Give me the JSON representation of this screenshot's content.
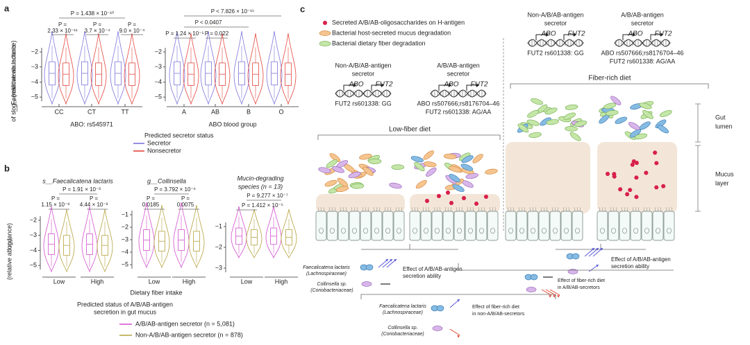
{
  "panel_a": {
    "label": "a",
    "ylabel": [
      "log₁₀ (relative abundance)",
      "of s__Faecalicatena lactaris"
    ],
    "yticks": [
      "−2",
      "−3",
      "−4",
      "−5"
    ],
    "left": {
      "groups": [
        "CC",
        "CT",
        "TT"
      ],
      "xlabel": "ABO: rs545971",
      "p": [
        [
          "P = 1.438 × 10⁻¹⁰"
        ],
        [
          "P =",
          "2.33 × 10⁻¹¹"
        ],
        [
          "P =",
          "3.7 × 10⁻⁴"
        ],
        [
          "P =",
          "9.0 × 10⁻⁴"
        ]
      ]
    },
    "right": {
      "groups": [
        "A",
        "AB",
        "B",
        "O"
      ],
      "xlabel": "ABO blood group",
      "p": [
        [
          "P < 7.826 × 10⁻¹⁵"
        ],
        [
          "P < 0.0407"
        ],
        [
          "P = 1.24 × 10⁻⁵"
        ],
        [
          "P = 0.022"
        ]
      ]
    },
    "legend": {
      "title": "Predicted secretor status",
      "items": [
        {
          "name": "Secretor",
          "color": "#7b73d9"
        },
        {
          "name": "Nonsecretor",
          "color": "#e2453c"
        }
      ]
    }
  },
  "panel_b": {
    "label": "b",
    "ylabel": [
      "log₁₀",
      "(relative abundance)"
    ],
    "plots": [
      {
        "title": [
          "s__Faecalicatena lactaris"
        ],
        "yticks": [
          "−2",
          "−3",
          "−4",
          "−5"
        ],
        "groups": [
          "Low",
          "High"
        ],
        "p": [
          [
            "P = 1.91 × 10⁻³"
          ],
          [
            "P =",
            "1.15 × 10⁻⁹"
          ],
          [
            "P =",
            "4.44 × 10⁻³"
          ]
        ]
      },
      {
        "title": [
          "g__Collinsella"
        ],
        "yticks": [
          "−1",
          "−2",
          "−3",
          "−4",
          "−5"
        ],
        "groups": [
          "Low",
          "High"
        ],
        "p": [
          [
            "P = 3.792 × 10⁻⁶"
          ],
          [
            "P =",
            "0.0185"
          ],
          [
            "P =",
            "0.0075"
          ]
        ]
      },
      {
        "title": [
          "Mucin-degrading",
          "species (n = 13)"
        ],
        "yticks": [
          "−1",
          "−2",
          "−3"
        ],
        "groups": [
          "Low",
          "High"
        ],
        "p": [
          [
            "P = 9.277 × 10⁻⁷"
          ],
          [
            "P = 1.412 × 10⁻⁵"
          ]
        ]
      }
    ],
    "xlabel": "Dietary fiber intake",
    "legend": {
      "title": [
        "Predicted status of A/B/AB-antigen",
        "secretion in gut mucus"
      ],
      "items": [
        {
          "name": "A/B/AB-antigen secretor (n = 5,081)",
          "color": "#d24fcf"
        },
        {
          "name": "Non-A/B/AB-antigen secretor (n = 878)",
          "color": "#b5a23c"
        }
      ]
    }
  },
  "panel_c": {
    "label": "c",
    "legend": [
      "Secreted A/B/AB-oligosaccharides on H-antigen",
      "Bacterial host-secreted mucus degradation",
      "Bacterial dietary fiber degradation"
    ],
    "low_fiber": {
      "title": "Low-fiber diet",
      "non_secretor": {
        "title": [
          "Non-A/B/AB-antigen",
          "secretor"
        ],
        "genes": [
          "ABO",
          "FUT2"
        ],
        "snps": [
          "FUT2 rs601338: GG"
        ]
      },
      "secretor": {
        "title": [
          "A/B/AB-antigen",
          "secretor"
        ],
        "genes": [
          "ABO",
          "FUT2"
        ],
        "snps": [
          "ABO rs507666;rs8176704–46",
          "FUT2 rs601338: AG/AA"
        ]
      }
    },
    "fiber_rich": {
      "title": "Fiber-rich diet",
      "non_secretor": {
        "title": [
          "Non-A/B/AB-antigen",
          "secretor"
        ],
        "genes": [
          "ABO",
          "FUT2"
        ],
        "snps": [
          "FUT2 rs601338: GG"
        ]
      },
      "secretor": {
        "title": [
          "A/B/AB-antigen",
          "secretor"
        ],
        "genes": [
          "ABO",
          "FUT2"
        ],
        "snps": [
          "ABO rs507666;rs8176704–46",
          "FUT2 rs601338: AG/AA"
        ]
      }
    },
    "layers": [
      [
        "Gut",
        "lumen"
      ],
      [
        "Mucus",
        "layer"
      ]
    ],
    "key_left": {
      "faecalicatena": [
        "Faecalicatena lactaris",
        "(Lachnospiraceae)"
      ],
      "collinsella": [
        "Collinsella sp.",
        "(Coriobacteriaceae)"
      ],
      "effect": [
        "Effect of A/B/AB-antigen",
        "secretion ability"
      ]
    },
    "key_right": {
      "effect": [
        "Effect of A/B/AB-antigen",
        "secretion ability"
      ]
    },
    "key_mid": {
      "effect": [
        "Effect of fiber-rich diet",
        "in A/B/AB-secretors"
      ]
    },
    "key_bottom": {
      "faecalicatena": [
        "Faecalicatena lactaris",
        "(Lachnospiraceae)"
      ],
      "collinsella": [
        "Collinsella sp.",
        "(Coriobacteriaceae)"
      ],
      "effect_f": [
        "Effect of fiber-rich diet",
        "in non-A/B/AB-secretors"
      ]
    }
  }
}
